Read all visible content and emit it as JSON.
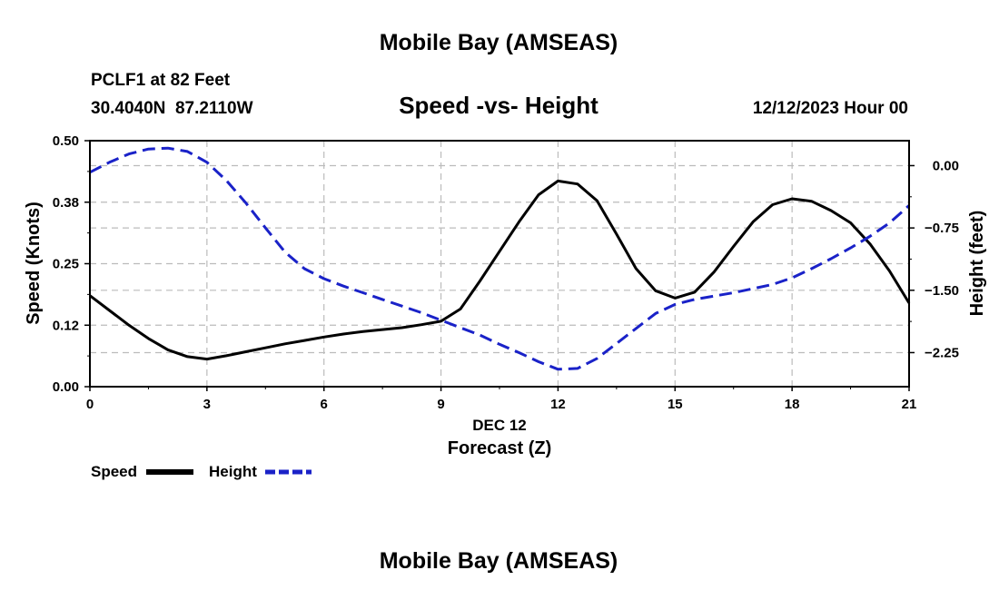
{
  "page": {
    "title": "Mobile Bay (AMSEAS)",
    "footer_title": "Mobile Bay (AMSEAS)"
  },
  "header": {
    "station": "PCLF1 at 82 Feet",
    "coords": "30.4040N  87.2110W",
    "datetime": "12/12/2023 Hour 00"
  },
  "colors": {
    "speed": "#000000",
    "height": "#1a22c8",
    "grid": "#bbbbbb"
  },
  "chart_data": {
    "type": "line",
    "title": "Speed -vs- Height",
    "xlabel": "Forecast (Z)",
    "xlabel_date": "DEC 12",
    "ylabel": "Speed (Knots)",
    "y2label": "Height (feet)",
    "xlim": [
      0,
      21
    ],
    "ylim": [
      0,
      0.5
    ],
    "y2lim": [
      -2.66,
      0.3
    ],
    "x_ticks": [
      0,
      3,
      6,
      9,
      12,
      15,
      18,
      21
    ],
    "x_tick_labels": [
      "0",
      "3",
      "6",
      "9",
      "12",
      "15",
      "18",
      "21"
    ],
    "y_ticks": [
      0,
      0.125,
      0.25,
      0.375,
      0.5
    ],
    "y_tick_labels": [
      "0.00",
      "0.12",
      "0.25",
      "0.38",
      "0.50"
    ],
    "y2_ticks": [
      0,
      -0.75,
      -1.5,
      -2.25
    ],
    "y2_tick_labels": [
      "0.00",
      "−0.75",
      "−1.50",
      "−2.25"
    ],
    "grid": true,
    "legend_position": "bottom-left",
    "series": [
      {
        "name": "Speed",
        "axis": "left",
        "style": "solid",
        "x": [
          0,
          0.5,
          1,
          1.5,
          2,
          2.5,
          3,
          3.5,
          4,
          4.5,
          5,
          5.5,
          6,
          6.5,
          7,
          7.5,
          8,
          8.5,
          9,
          9.5,
          10,
          10.5,
          11,
          11.5,
          12,
          12.5,
          13,
          13.5,
          14,
          14.5,
          15,
          15.5,
          16,
          16.5,
          17,
          17.5,
          18,
          18.5,
          19,
          19.5,
          20,
          20.5,
          21
        ],
        "values": [
          0.185,
          0.155,
          0.125,
          0.098,
          0.075,
          0.061,
          0.056,
          0.063,
          0.071,
          0.079,
          0.087,
          0.094,
          0.101,
          0.107,
          0.112,
          0.116,
          0.12,
          0.126,
          0.133,
          0.158,
          0.215,
          0.275,
          0.335,
          0.39,
          0.418,
          0.412,
          0.378,
          0.31,
          0.24,
          0.195,
          0.18,
          0.192,
          0.233,
          0.285,
          0.335,
          0.37,
          0.382,
          0.377,
          0.358,
          0.333,
          0.29,
          0.235,
          0.17
        ]
      },
      {
        "name": "Height",
        "axis": "right",
        "style": "dashed",
        "x": [
          0,
          0.5,
          1,
          1.5,
          2,
          2.5,
          3,
          3.5,
          4,
          4.5,
          5,
          5.5,
          6,
          6.5,
          7,
          7.5,
          8,
          8.5,
          9,
          9.5,
          10,
          10.5,
          11,
          11.5,
          12,
          12.5,
          13,
          13.5,
          14,
          14.5,
          15,
          15.5,
          16,
          16.5,
          17,
          17.5,
          18,
          18.5,
          19,
          19.5,
          20,
          20.5,
          21
        ],
        "values": [
          -0.08,
          0.04,
          0.14,
          0.2,
          0.21,
          0.17,
          0.04,
          -0.18,
          -0.45,
          -0.75,
          -1.04,
          -1.24,
          -1.36,
          -1.45,
          -1.53,
          -1.61,
          -1.69,
          -1.77,
          -1.86,
          -1.95,
          -2.04,
          -2.15,
          -2.25,
          -2.36,
          -2.45,
          -2.44,
          -2.32,
          -2.14,
          -1.96,
          -1.78,
          -1.67,
          -1.61,
          -1.57,
          -1.53,
          -1.48,
          -1.43,
          -1.35,
          -1.24,
          -1.12,
          -0.99,
          -0.85,
          -0.69,
          -0.48
        ]
      }
    ]
  }
}
